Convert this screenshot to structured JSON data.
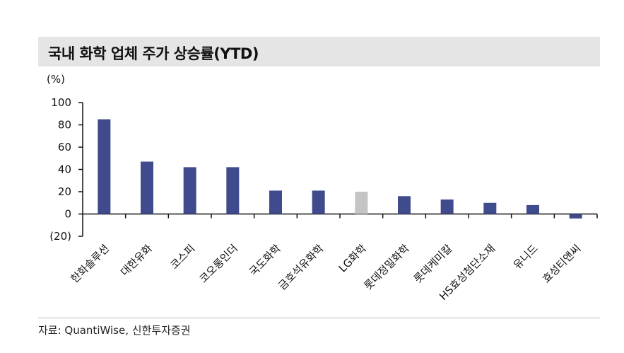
{
  "title": "국내 화학 업체 주가 상승률(YTD)",
  "source": "자료: QuantiWise, 신한투자증권",
  "colors": {
    "bar": "#3f4b8c",
    "highlight": "#c4c4c4",
    "title_band": "#e5e5e5"
  },
  "chart_data": {
    "type": "bar",
    "unit_label": "(%)",
    "categories": [
      "한화솔루션",
      "대한유화",
      "코스피",
      "코오롱인더",
      "국도화학",
      "금호석유화학",
      "LG화학",
      "롯데정밀화학",
      "롯데케미칼",
      "HS효성첨단소재",
      "유니드",
      "효성티앤씨"
    ],
    "values": [
      85,
      47,
      42,
      42,
      21,
      21,
      20,
      16,
      13,
      10,
      8,
      -4
    ],
    "highlight_category": "LG화학",
    "ylim": [
      -20,
      100
    ],
    "yticks": [
      -20,
      0,
      20,
      40,
      60,
      80,
      100
    ],
    "ytick_labels": [
      "(20)",
      "0",
      "20",
      "40",
      "60",
      "80",
      "100"
    ],
    "grid": false,
    "legend": "none"
  }
}
